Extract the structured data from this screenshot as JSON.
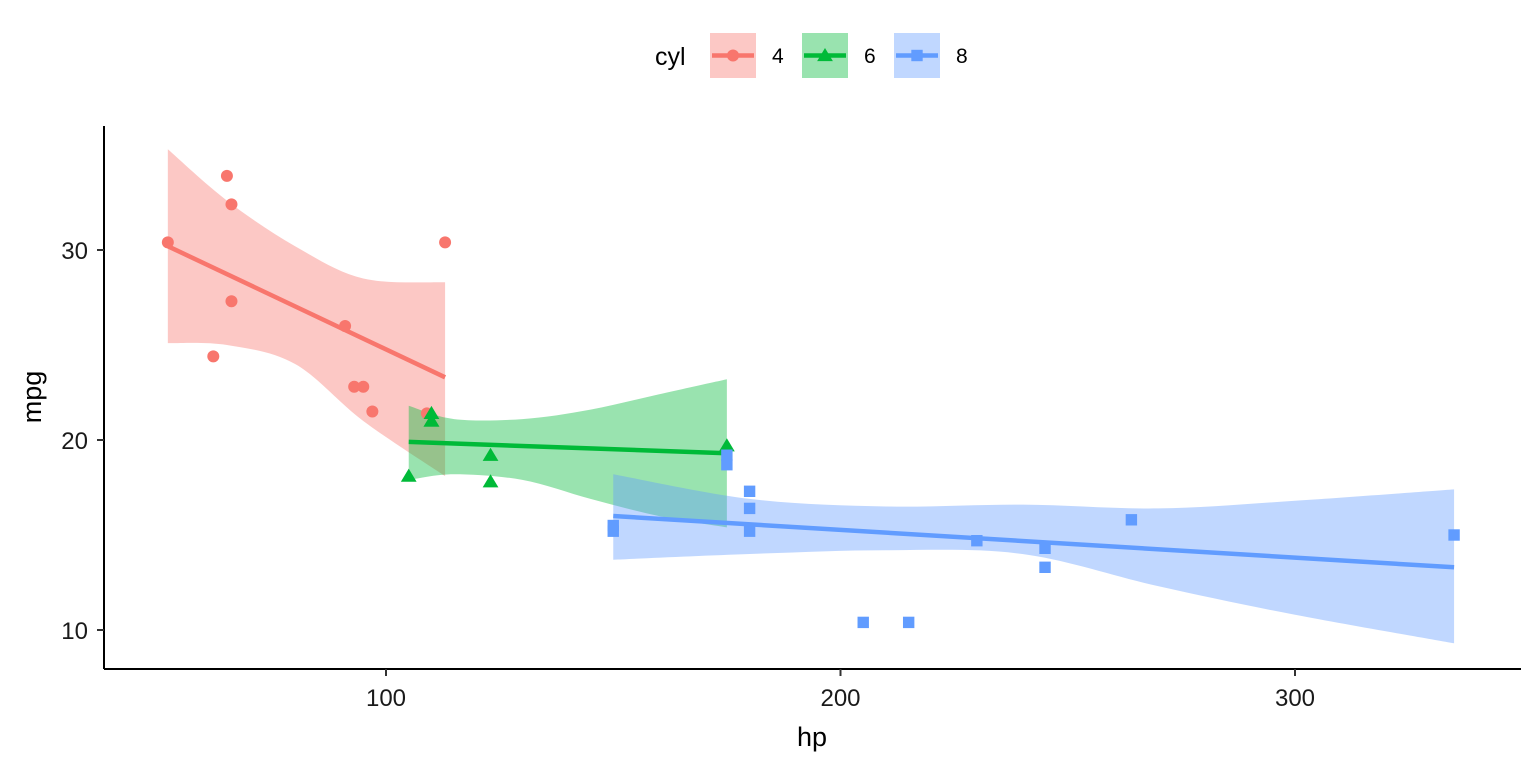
{
  "chart_data": {
    "type": "scatter",
    "xlabel": "hp",
    "ylabel": "mpg",
    "xlim": [
      40,
      340
    ],
    "ylim": [
      8,
      36
    ],
    "x_ticks": [
      100,
      200,
      300
    ],
    "y_ticks": [
      10,
      20,
      30
    ],
    "grid": false,
    "legend": {
      "title": "cyl",
      "position": "top"
    },
    "series": [
      {
        "name": "4",
        "color": "#F8766D",
        "marker": "circle",
        "points": [
          [
            93,
            22.8
          ],
          [
            62,
            24.4
          ],
          [
            95,
            22.8
          ],
          [
            66,
            32.4
          ],
          [
            52,
            30.4
          ],
          [
            65,
            33.9
          ],
          [
            97,
            21.5
          ],
          [
            66,
            27.3
          ],
          [
            91,
            26.0
          ],
          [
            113,
            30.4
          ],
          [
            109,
            21.4
          ]
        ],
        "fit": {
          "x": [
            52,
            113
          ],
          "y": [
            30.2,
            23.3
          ]
        },
        "band": {
          "x": [
            52,
            65,
            80,
            95,
            113
          ],
          "lower": [
            25.1,
            25.0,
            24.0,
            21.0,
            18.1
          ],
          "upper": [
            35.3,
            32.6,
            30.2,
            28.5,
            28.3
          ]
        }
      },
      {
        "name": "6",
        "color": "#00BA38",
        "marker": "triangle",
        "points": [
          [
            110,
            21.0
          ],
          [
            110,
            21.0
          ],
          [
            110,
            21.4
          ],
          [
            105,
            18.1
          ],
          [
            123,
            19.2
          ],
          [
            123,
            17.8
          ],
          [
            175,
            19.7
          ]
        ],
        "fit": {
          "x": [
            105,
            175
          ],
          "y": [
            19.9,
            19.3
          ]
        },
        "band": {
          "x": [
            105,
            115,
            130,
            145,
            160,
            175
          ],
          "lower": [
            17.9,
            18.2,
            17.9,
            16.9,
            16.0,
            15.4
          ],
          "upper": [
            21.8,
            21.1,
            21.1,
            21.6,
            22.4,
            23.2
          ]
        }
      },
      {
        "name": "8",
        "color": "#619CFF",
        "marker": "square",
        "points": [
          [
            175,
            18.7
          ],
          [
            245,
            14.3
          ],
          [
            180,
            16.4
          ],
          [
            180,
            17.3
          ],
          [
            180,
            15.2
          ],
          [
            205,
            10.4
          ],
          [
            215,
            10.4
          ],
          [
            230,
            14.7
          ],
          [
            150,
            15.5
          ],
          [
            150,
            15.2
          ],
          [
            245,
            13.3
          ],
          [
            175,
            19.2
          ],
          [
            264,
            15.8
          ],
          [
            335,
            15.0
          ]
        ],
        "fit": {
          "x": [
            150,
            335
          ],
          "y": [
            16.0,
            13.3
          ]
        },
        "band": {
          "x": [
            150,
            180,
            210,
            240,
            270,
            300,
            335
          ],
          "lower": [
            13.7,
            14.0,
            14.2,
            14.0,
            12.3,
            10.8,
            9.3
          ],
          "upper": [
            18.2,
            16.9,
            16.5,
            16.6,
            16.4,
            16.8,
            17.4
          ]
        }
      }
    ]
  }
}
